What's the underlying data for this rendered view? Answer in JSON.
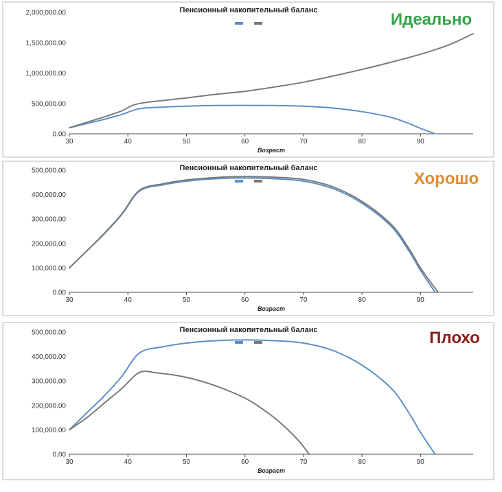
{
  "colors": {
    "series_blue": "#5b8fc7",
    "series_gray": "#7a7a7a",
    "good": "#33a64a",
    "ok": "#e38b30",
    "bad": "#8c1c1c"
  },
  "chart_data": [
    {
      "type": "line",
      "title": "Пенсионный накопительный баланс",
      "verdict": "Идеально",
      "verdict_color": "#33a64a",
      "xlabel": "Возраст",
      "ylabel": "",
      "xlim": [
        30,
        99
      ],
      "ylim": [
        0,
        2000000
      ],
      "xticks": [
        "30",
        "40",
        "50",
        "60",
        "70",
        "80",
        "90"
      ],
      "yticks": [
        "0.00",
        "500,000.00",
        "1,000,000.00",
        "1,500,000.00",
        "2,000,000.00"
      ],
      "legend": "top",
      "grid": false,
      "series": [
        {
          "color": "#5b8fc7",
          "x": [
            30,
            33,
            36,
            39,
            42,
            46,
            50,
            55,
            60,
            65,
            70,
            75,
            80,
            85,
            88,
            90,
            92.5
          ],
          "y": [
            100000,
            170000,
            240000,
            320000,
            415000,
            440000,
            455000,
            465000,
            468000,
            465000,
            455000,
            425000,
            365000,
            270000,
            170000,
            90000,
            0
          ]
        },
        {
          "color": "#7a7a7a",
          "x": [
            30,
            33,
            36,
            39,
            42,
            50,
            55,
            60,
            65,
            70,
            75,
            80,
            85,
            90,
            95,
            99
          ],
          "y": [
            100000,
            190000,
            280000,
            380000,
            500000,
            590000,
            650000,
            700000,
            770000,
            850000,
            950000,
            1060000,
            1180000,
            1310000,
            1470000,
            1650000
          ]
        }
      ]
    },
    {
      "type": "line",
      "title": "Пенсионный накопительный баланс",
      "verdict": "Хорошо",
      "verdict_color": "#e38b30",
      "xlabel": "Возраст",
      "ylabel": "",
      "xlim": [
        30,
        99
      ],
      "ylim": [
        0,
        500000
      ],
      "xticks": [
        "30",
        "40",
        "50",
        "60",
        "70",
        "80",
        "90"
      ],
      "yticks": [
        "0.00",
        "100,000.00",
        "200,000.00",
        "300,000.00",
        "400,000.00",
        "500,000.00"
      ],
      "legend": "top",
      "grid": false,
      "series": [
        {
          "color": "#5b8fc7",
          "x": [
            30,
            33,
            36,
            39,
            42,
            46,
            50,
            55,
            60,
            65,
            70,
            75,
            80,
            85,
            88,
            90,
            92.5
          ],
          "y": [
            100000,
            170000,
            240000,
            320000,
            415000,
            440000,
            455000,
            465000,
            468000,
            465000,
            455000,
            425000,
            365000,
            270000,
            170000,
            90000,
            0
          ]
        },
        {
          "color": "#7a7a7a",
          "x": [
            30,
            33,
            36,
            39,
            42,
            46,
            50,
            55,
            60,
            65,
            70,
            75,
            80,
            85,
            88,
            90,
            93
          ],
          "y": [
            100000,
            170000,
            242000,
            322000,
            418000,
            444000,
            460000,
            470000,
            474000,
            471000,
            462000,
            432000,
            372000,
            278000,
            180000,
            100000,
            0
          ]
        }
      ]
    },
    {
      "type": "line",
      "title": "Пенсионный накопительный баланс",
      "verdict": "Плохо",
      "verdict_color": "#8c1c1c",
      "xlabel": "Возраст",
      "ylabel": "",
      "xlim": [
        30,
        99
      ],
      "ylim": [
        0,
        500000
      ],
      "xticks": [
        "30",
        "40",
        "50",
        "60",
        "70",
        "80",
        "90"
      ],
      "yticks": [
        "0.00",
        "100,000.00",
        "200,000.00",
        "300,000.00",
        "400,000.00",
        "500,000.00"
      ],
      "legend": "top",
      "grid": false,
      "series": [
        {
          "color": "#5b8fc7",
          "x": [
            30,
            33,
            36,
            39,
            42,
            46,
            50,
            55,
            60,
            65,
            70,
            75,
            80,
            85,
            88,
            90,
            92.5
          ],
          "y": [
            100000,
            170000,
            240000,
            320000,
            415000,
            440000,
            455000,
            465000,
            468000,
            465000,
            455000,
            425000,
            365000,
            270000,
            170000,
            90000,
            0
          ]
        },
        {
          "color": "#7a7a7a",
          "x": [
            30,
            33,
            36,
            39,
            42,
            45,
            50,
            55,
            60,
            63,
            66,
            69,
            71
          ],
          "y": [
            100000,
            150000,
            210000,
            270000,
            335000,
            333000,
            315000,
            280000,
            230000,
            185000,
            130000,
            60000,
            0
          ]
        }
      ]
    }
  ]
}
